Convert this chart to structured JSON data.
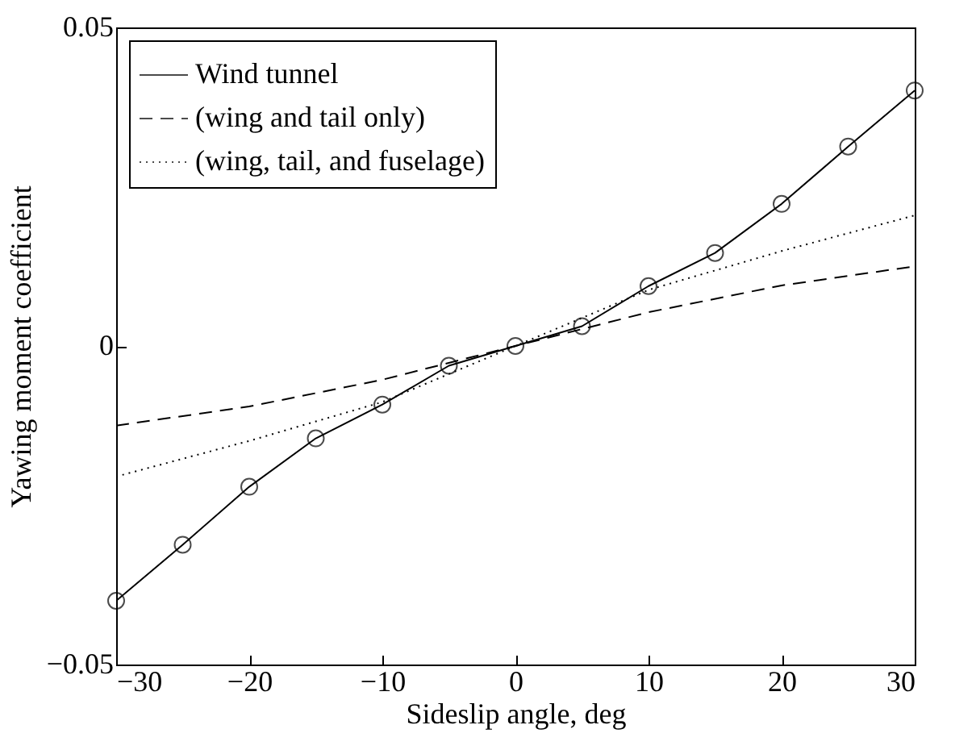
{
  "chart_data": {
    "type": "line",
    "xlabel": "Sideslip angle, deg",
    "ylabel": "Yawing moment coefficient",
    "xlim": [
      -30,
      30
    ],
    "ylim": [
      -0.05,
      0.05
    ],
    "xticks": [
      {
        "value": -30,
        "label": "−30"
      },
      {
        "value": -20,
        "label": "−20"
      },
      {
        "value": -10,
        "label": "−10"
      },
      0,
      10,
      20,
      30
    ],
    "yticks": [
      {
        "value": -0.05,
        "label": "−0.05"
      },
      0,
      0.05
    ],
    "grid": false,
    "legend": "top left",
    "series": [
      {
        "name": "Wind tunnel",
        "color": "#000000",
        "marker": "circle",
        "line_style": "solid",
        "x": [
          -30,
          -25,
          -20,
          -15,
          -10,
          -5,
          0,
          5,
          10,
          15,
          20,
          25,
          30
        ],
        "values": [
          -0.04,
          -0.0312,
          -0.0221,
          -0.0145,
          -0.0092,
          -0.0031,
          0,
          0.0031,
          0.0094,
          0.0146,
          0.0223,
          0.0313,
          0.0401
        ]
      },
      {
        "name": "(wing and tail only)",
        "color": "#000000",
        "marker": "none",
        "line_style": "dashed",
        "x": [
          -30,
          -20,
          -10,
          0,
          10,
          20,
          30
        ],
        "values": [
          -0.0125,
          -0.0095,
          -0.0053,
          0,
          0.0053,
          0.0095,
          0.0125
        ]
      },
      {
        "name": "(wing, tail, and fuselage)",
        "color": "#000000",
        "marker": "none",
        "line_style": "dotted",
        "x": [
          -30,
          -20,
          -10,
          0,
          10,
          20,
          30
        ],
        "values": [
          -0.0205,
          -0.0149,
          -0.0088,
          0,
          0.0088,
          0.0149,
          0.0205
        ]
      }
    ]
  }
}
